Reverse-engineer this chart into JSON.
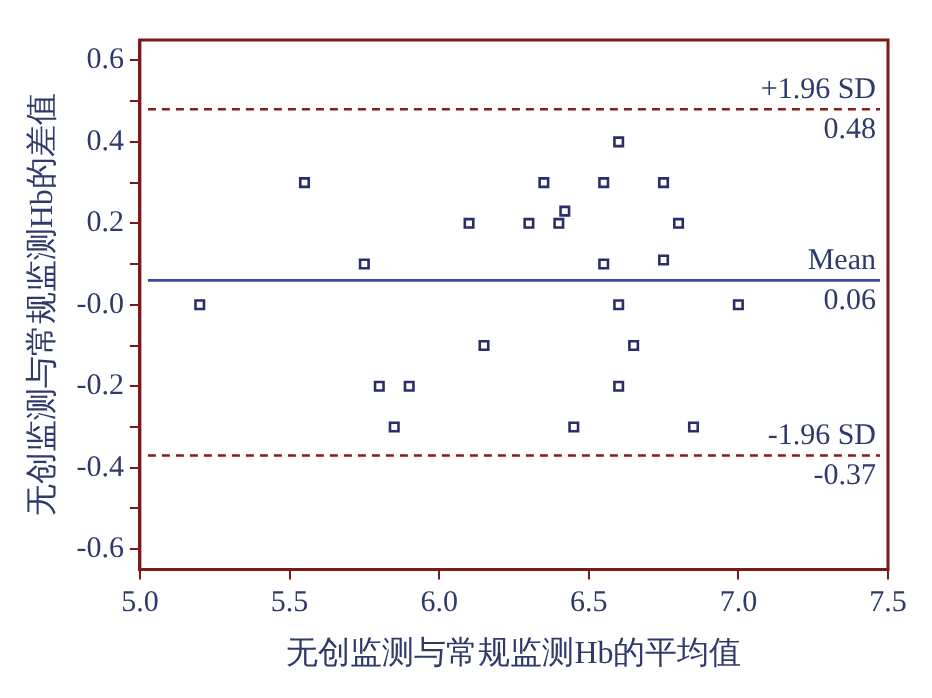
{
  "chart_data": {
    "type": "scatter",
    "xlabel": "无创监测与常规监测Hb的平均值",
    "ylabel": "无创监测与常规监测Hb的差值",
    "x": [
      5.2,
      5.55,
      5.75,
      6.1,
      6.3,
      6.35,
      6.4,
      6.42,
      6.55,
      6.6,
      6.55,
      6.75,
      6.75,
      6.8,
      6.6,
      7.0,
      6.15,
      6.65,
      5.8,
      5.9,
      6.6,
      5.85,
      6.45,
      6.85
    ],
    "series": [
      {
        "color": "#2b2d6b",
        "values": [
          0.0,
          0.3,
          0.1,
          0.2,
          0.2,
          0.3,
          0.2,
          0.23,
          0.3,
          0.4,
          0.1,
          0.3,
          0.11,
          0.2,
          0.0,
          0.0,
          -0.1,
          -0.1,
          -0.2,
          -0.2,
          -0.2,
          -0.3,
          -0.3,
          -0.3
        ]
      }
    ],
    "marker": "square",
    "grid": false,
    "legend": false,
    "xlim": [
      5.0,
      7.5
    ],
    "xticks": [
      {
        "value": 5,
        "label": "5.0"
      },
      5.5,
      {
        "value": 6,
        "label": "6.0"
      },
      6.5,
      {
        "value": 7,
        "label": "7.0"
      },
      7.5
    ],
    "ylim": [
      -0.65,
      0.65
    ],
    "yticks": [
      0.6,
      {
        "value": 0.5,
        "label": null
      },
      0.4,
      {
        "value": 0.3,
        "label": null
      },
      0.2,
      {
        "value": 0.1,
        "label": null
      },
      {
        "value": 0,
        "label": "-0.0"
      },
      {
        "value": -0.1,
        "label": null
      },
      -0.2,
      {
        "value": -0.3,
        "label": null
      },
      -0.4,
      {
        "value": -0.5,
        "label": null
      },
      -0.6
    ],
    "ref_lines": [
      {
        "axis": "y",
        "value": 0.48,
        "label": "+1.96 SD",
        "color": "#8b1a1a",
        "line_style": "dashed"
      },
      {
        "axis": "y",
        "value": 0.06,
        "label": "Mean",
        "color": "#3a4aa8",
        "line_style": "solid"
      },
      {
        "axis": "y",
        "value": -0.37,
        "label": "-1.96 SD",
        "color": "#8b1a1a",
        "line_style": "dashed"
      }
    ],
    "annotations": [
      {
        "text": "0.48",
        "y": 0.48
      },
      {
        "text": "0.06",
        "y": 0.06
      },
      {
        "text": "-0.37",
        "y": -0.37
      }
    ]
  }
}
